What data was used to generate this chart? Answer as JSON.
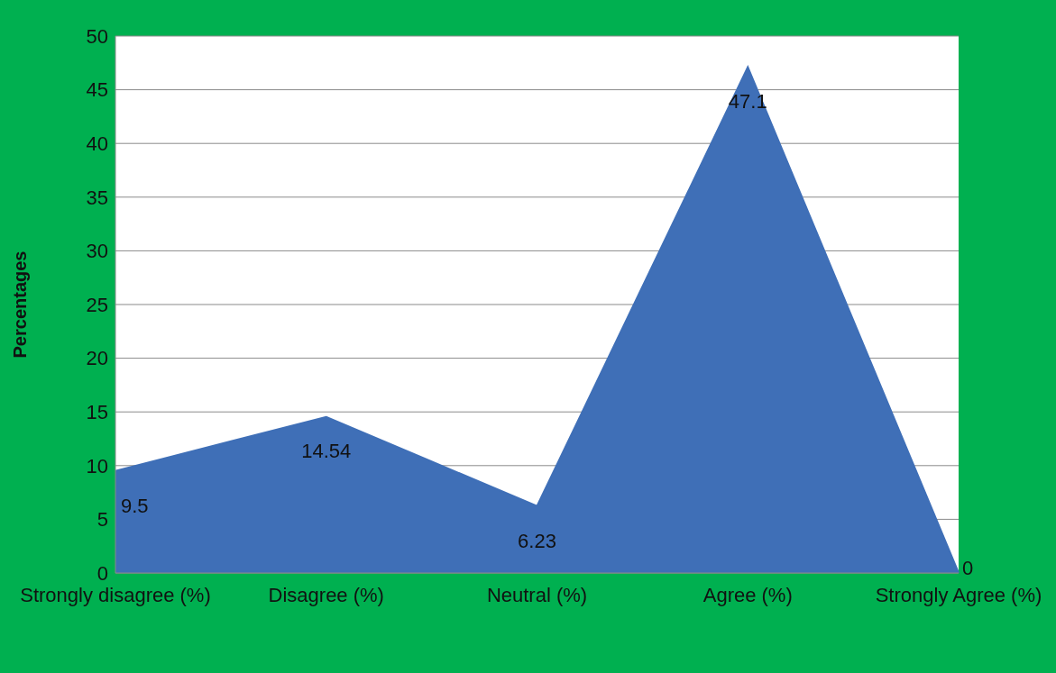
{
  "chart_data": {
    "type": "area",
    "ylabel": "Percentages",
    "categories": [
      "Strongly disagree  (%)",
      "Disagree (%)",
      "Neutral (%)",
      "Agree (%)",
      "Strongly Agree (%)"
    ],
    "values": [
      9.5,
      14.54,
      6.23,
      47.1,
      0
    ],
    "color": "#3f6fb7",
    "ylim": [
      0,
      50
    ],
    "yticks": [
      0,
      5,
      10,
      15,
      20,
      25,
      30,
      35,
      40,
      45,
      50
    ],
    "grid": "y",
    "data_labels": true
  }
}
